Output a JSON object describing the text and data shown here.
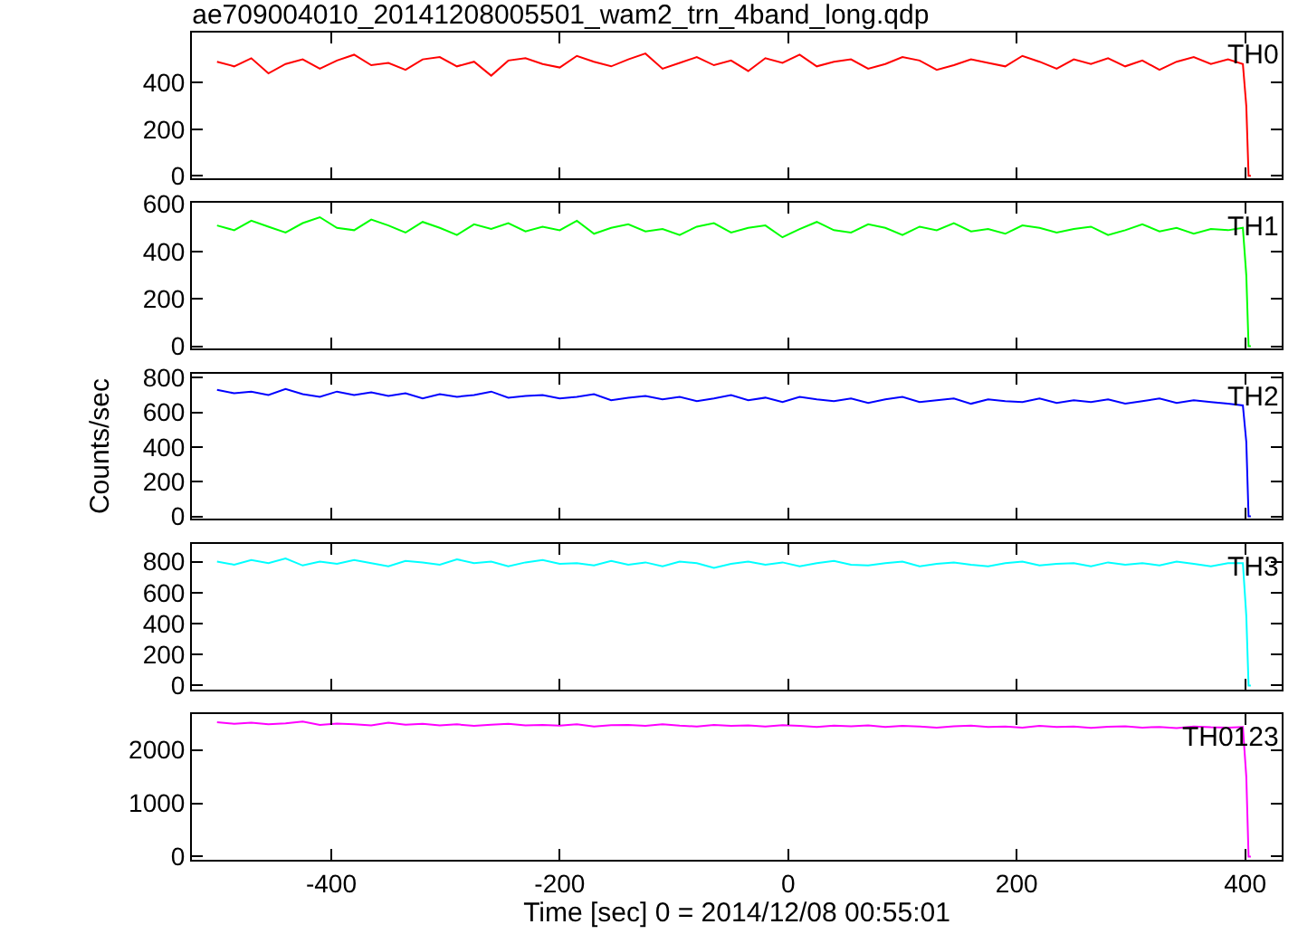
{
  "chart_data": [
    {
      "type": "line",
      "title": "ae709004010_20141208005501_wam2_trn_4band_long.qdp",
      "xlim": [
        -522,
        432
      ],
      "xticks": [
        -400,
        -200,
        0,
        200,
        400
      ],
      "ylim": [
        -10,
        615
      ],
      "yticks": [
        0,
        200,
        400
      ],
      "tick_labels": "y",
      "x": [
        -500,
        -485,
        -470,
        -455,
        -440,
        -425,
        -410,
        -395,
        -380,
        -365,
        -350,
        -335,
        -320,
        -305,
        -290,
        -275,
        -260,
        -245,
        -230,
        -215,
        -200,
        -185,
        -170,
        -155,
        -140,
        -125,
        -110,
        -95,
        -80,
        -65,
        -50,
        -35,
        -20,
        -5,
        10,
        25,
        40,
        55,
        70,
        85,
        100,
        115,
        130,
        145,
        160,
        175,
        190,
        205,
        220,
        235,
        250,
        265,
        280,
        295,
        310,
        325,
        340,
        355,
        370,
        385,
        398,
        401,
        403,
        405
      ],
      "series": [
        {
          "name": "TH0",
          "color": "#ff0000",
          "values": [
            490,
            470,
            505,
            440,
            480,
            500,
            460,
            495,
            520,
            475,
            485,
            455,
            500,
            510,
            470,
            490,
            430,
            495,
            505,
            480,
            465,
            515,
            490,
            470,
            500,
            525,
            460,
            485,
            510,
            475,
            495,
            450,
            505,
            485,
            520,
            470,
            490,
            500,
            460,
            480,
            510,
            495,
            455,
            475,
            500,
            485,
            470,
            515,
            490,
            460,
            500,
            480,
            505,
            470,
            495,
            455,
            490,
            510,
            480,
            500,
            480,
            300,
            0,
            0
          ]
        }
      ]
    },
    {
      "type": "line",
      "xlim": [
        -522,
        432
      ],
      "xticks": [
        -400,
        -200,
        0,
        200,
        400
      ],
      "ylim": [
        -10,
        605
      ],
      "yticks": [
        0,
        200,
        400,
        600
      ],
      "tick_labels": "y",
      "x": [
        -500,
        -485,
        -470,
        -455,
        -440,
        -425,
        -410,
        -395,
        -380,
        -365,
        -350,
        -335,
        -320,
        -305,
        -290,
        -275,
        -260,
        -245,
        -230,
        -215,
        -200,
        -185,
        -170,
        -155,
        -140,
        -125,
        -110,
        -95,
        -80,
        -65,
        -50,
        -35,
        -20,
        -5,
        10,
        25,
        40,
        55,
        70,
        85,
        100,
        115,
        130,
        145,
        160,
        175,
        190,
        205,
        220,
        235,
        250,
        265,
        280,
        295,
        310,
        325,
        340,
        355,
        370,
        385,
        398,
        401,
        403,
        405
      ],
      "series": [
        {
          "name": "TH1",
          "color": "#00ff00",
          "values": [
            510,
            490,
            530,
            505,
            480,
            520,
            545,
            500,
            490,
            535,
            510,
            480,
            525,
            500,
            470,
            515,
            495,
            520,
            485,
            505,
            490,
            530,
            475,
            500,
            515,
            485,
            495,
            470,
            505,
            520,
            480,
            500,
            510,
            460,
            495,
            525,
            490,
            480,
            515,
            500,
            470,
            505,
            490,
            520,
            485,
            495,
            475,
            510,
            500,
            480,
            495,
            505,
            470,
            490,
            515,
            485,
            500,
            475,
            495,
            490,
            500,
            300,
            0,
            0
          ]
        }
      ]
    },
    {
      "type": "line",
      "ylabel": "Counts/sec",
      "xlim": [
        -522,
        432
      ],
      "xticks": [
        -400,
        -200,
        0,
        200,
        400
      ],
      "ylim": [
        -15,
        825
      ],
      "yticks": [
        0,
        200,
        400,
        600,
        800
      ],
      "tick_labels": "y",
      "x": [
        -500,
        -485,
        -470,
        -455,
        -440,
        -425,
        -410,
        -395,
        -380,
        -365,
        -350,
        -335,
        -320,
        -305,
        -290,
        -275,
        -260,
        -245,
        -230,
        -215,
        -200,
        -185,
        -170,
        -155,
        -140,
        -125,
        -110,
        -95,
        -80,
        -65,
        -50,
        -35,
        -20,
        -5,
        10,
        25,
        40,
        55,
        70,
        85,
        100,
        115,
        130,
        145,
        160,
        175,
        190,
        205,
        220,
        235,
        250,
        265,
        280,
        295,
        310,
        325,
        340,
        355,
        370,
        385,
        398,
        401,
        403,
        405
      ],
      "series": [
        {
          "name": "TH2",
          "color": "#0000ff",
          "values": [
            730,
            710,
            720,
            700,
            735,
            705,
            690,
            720,
            700,
            715,
            695,
            710,
            680,
            705,
            690,
            700,
            720,
            685,
            695,
            700,
            680,
            690,
            705,
            670,
            685,
            695,
            675,
            690,
            665,
            680,
            700,
            670,
            685,
            660,
            690,
            675,
            665,
            680,
            655,
            675,
            690,
            660,
            670,
            680,
            650,
            675,
            665,
            660,
            680,
            655,
            670,
            660,
            675,
            650,
            665,
            680,
            655,
            670,
            660,
            650,
            640,
            430,
            0,
            0
          ]
        }
      ]
    },
    {
      "type": "line",
      "xlim": [
        -522,
        432
      ],
      "xticks": [
        -400,
        -200,
        0,
        200,
        400
      ],
      "ylim": [
        -25,
        915
      ],
      "yticks": [
        0,
        200,
        400,
        600,
        800
      ],
      "tick_labels": "y",
      "x": [
        -500,
        -485,
        -470,
        -455,
        -440,
        -425,
        -410,
        -395,
        -380,
        -365,
        -350,
        -335,
        -320,
        -305,
        -290,
        -275,
        -260,
        -245,
        -230,
        -215,
        -200,
        -185,
        -170,
        -155,
        -140,
        -125,
        -110,
        -95,
        -80,
        -65,
        -50,
        -35,
        -20,
        -5,
        10,
        25,
        40,
        55,
        70,
        85,
        100,
        115,
        130,
        145,
        160,
        175,
        190,
        205,
        220,
        235,
        250,
        265,
        280,
        295,
        310,
        325,
        340,
        355,
        370,
        385,
        398,
        401,
        403,
        405
      ],
      "series": [
        {
          "name": "TH3",
          "color": "#00ffff",
          "values": [
            800,
            780,
            810,
            790,
            820,
            775,
            800,
            785,
            810,
            790,
            770,
            805,
            795,
            780,
            815,
            790,
            800,
            770,
            795,
            810,
            785,
            790,
            775,
            805,
            780,
            795,
            770,
            800,
            790,
            760,
            785,
            800,
            780,
            795,
            770,
            790,
            805,
            780,
            775,
            790,
            800,
            770,
            785,
            795,
            780,
            770,
            790,
            800,
            775,
            785,
            790,
            770,
            795,
            780,
            790,
            775,
            800,
            785,
            770,
            790,
            790,
            450,
            0,
            0
          ]
        }
      ]
    },
    {
      "type": "line",
      "xlabel": "Time [sec] 0 = 2014/12/08 00:55:01",
      "xlim": [
        -522,
        432
      ],
      "xticks": [
        -400,
        -200,
        0,
        200,
        400
      ],
      "ylim": [
        -60,
        2670
      ],
      "yticks": [
        0,
        1000,
        2000
      ],
      "x": [
        -500,
        -485,
        -470,
        -455,
        -440,
        -425,
        -410,
        -395,
        -380,
        -365,
        -350,
        -335,
        -320,
        -305,
        -290,
        -275,
        -260,
        -245,
        -230,
        -215,
        -200,
        -185,
        -170,
        -155,
        -140,
        -125,
        -110,
        -95,
        -80,
        -65,
        -50,
        -35,
        -20,
        -5,
        10,
        25,
        40,
        55,
        70,
        85,
        100,
        115,
        130,
        145,
        160,
        175,
        190,
        205,
        220,
        235,
        250,
        265,
        280,
        295,
        310,
        325,
        340,
        355,
        370,
        385,
        398,
        401,
        403,
        405
      ],
      "series": [
        {
          "name": "TH0123",
          "color": "#ff00ff",
          "values": [
            2520,
            2490,
            2510,
            2480,
            2500,
            2530,
            2470,
            2495,
            2480,
            2460,
            2510,
            2475,
            2490,
            2460,
            2480,
            2450,
            2475,
            2490,
            2460,
            2470,
            2455,
            2480,
            2440,
            2465,
            2470,
            2450,
            2480,
            2455,
            2440,
            2470,
            2450,
            2460,
            2440,
            2465,
            2450,
            2430,
            2455,
            2445,
            2460,
            2430,
            2450,
            2440,
            2420,
            2445,
            2455,
            2430,
            2440,
            2420,
            2450,
            2430,
            2440,
            2415,
            2435,
            2445,
            2420,
            2430,
            2410,
            2440,
            2425,
            2420,
            2430,
            1500,
            0,
            0
          ]
        }
      ]
    }
  ]
}
